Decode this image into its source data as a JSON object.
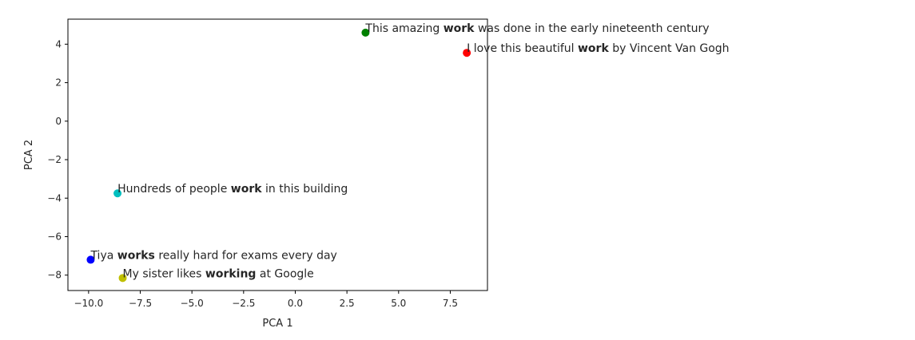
{
  "chart_data": {
    "type": "scatter",
    "title": "",
    "xlabel": "PCA 1",
    "ylabel": "PCA 2",
    "xlim": [
      -11.0,
      9.3
    ],
    "ylim": [
      -8.8,
      5.3
    ],
    "xticks": [
      -10.0,
      -7.5,
      -5.0,
      -2.5,
      0.0,
      2.5,
      5.0,
      7.5
    ],
    "xtick_labels": [
      "−10.0",
      "−7.5",
      "−5.0",
      "−2.5",
      "0.0",
      "2.5",
      "5.0",
      "7.5"
    ],
    "yticks": [
      4,
      2,
      0,
      -2,
      -4,
      -6,
      -8
    ],
    "ytick_labels": [
      "4",
      "2",
      "0",
      "−2",
      "−4",
      "−6",
      "−8"
    ],
    "grid": false,
    "points": [
      {
        "x": 3.4,
        "y": 4.6,
        "color": "#008000",
        "pre": "This amazing ",
        "bold": "work",
        "post": " was done in the early nineteenth century"
      },
      {
        "x": 8.3,
        "y": 3.55,
        "color": "#ff0000",
        "pre": "I love this beautiful ",
        "bold": "work",
        "post": " by Vincent Van Gogh"
      },
      {
        "x": -8.6,
        "y": -3.75,
        "color": "#00bfbf",
        "pre": "Hundreds of people ",
        "bold": "work",
        "post": " in this building"
      },
      {
        "x": -9.9,
        "y": -7.2,
        "color": "#0000ff",
        "pre": "Tiya ",
        "bold": "works",
        "post": " really hard for exams every day"
      },
      {
        "x": -8.35,
        "y": -8.15,
        "color": "#bfbf00",
        "pre": "My sister likes ",
        "bold": "working",
        "post": " at Google"
      }
    ]
  }
}
